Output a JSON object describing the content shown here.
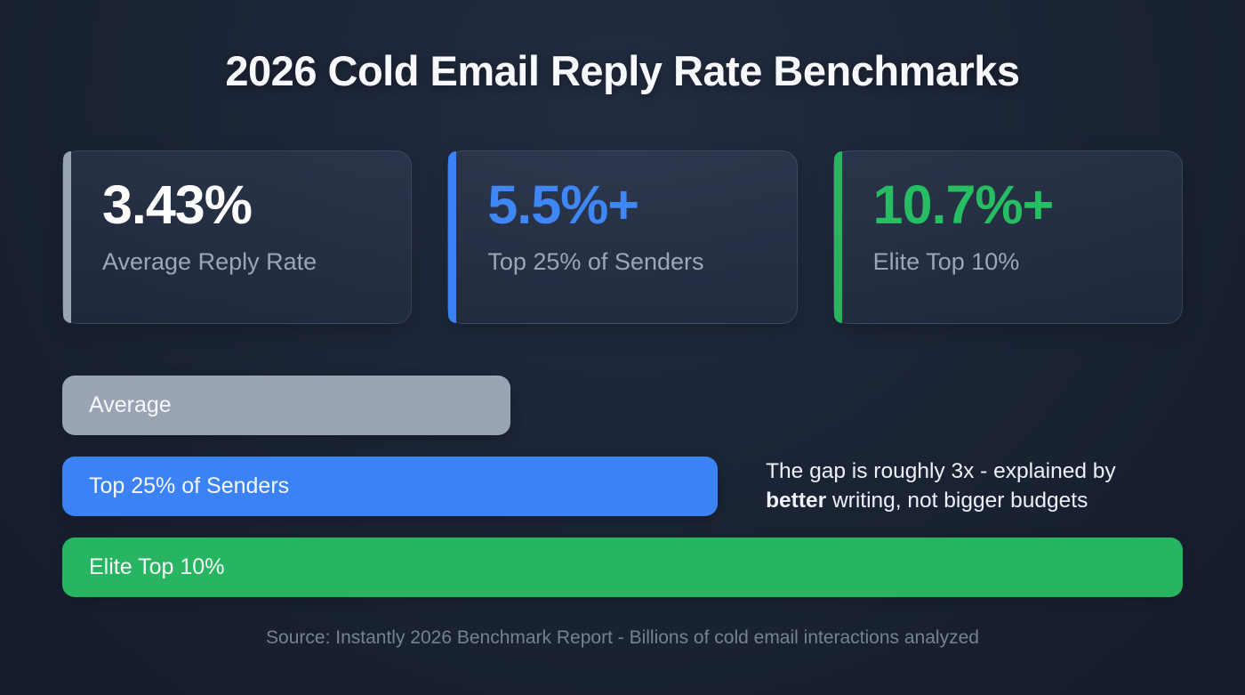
{
  "header": {
    "title": "2026 Cold Email Reply Rate Benchmarks"
  },
  "stat_cards": [
    {
      "value": "3.43%",
      "label": "Average Reply Rate",
      "accent_color": "#9aa4b4",
      "value_color": "#ffffff"
    },
    {
      "value": "5.5%+",
      "label": "Top 25% of Senders",
      "accent_color": "#3b82f6",
      "value_color": "#3f86f7"
    },
    {
      "value": "10.7%+",
      "label": "Elite Top 10%",
      "accent_color": "#28b561",
      "value_color": "#27bd62"
    }
  ],
  "chart_data": {
    "type": "bar",
    "orientation": "horizontal",
    "title": "2026 Cold Email Reply Rate Benchmarks",
    "categories": [
      "Average",
      "Top 25% of Senders",
      "Elite Top 10%"
    ],
    "values": [
      3.43,
      5.5,
      10.7
    ],
    "unit": "% reply rate",
    "bar_colors": [
      "#9aa4b4",
      "#3b82f6",
      "#28b561"
    ],
    "bar_width_pct": [
      40,
      58.5,
      100
    ],
    "grid": false,
    "legend": false,
    "annotations": [
      "The gap is roughly 3x - explained by better writing, not bigger budgets"
    ]
  },
  "annotation": {
    "line1": "The gap is roughly 3x - explained by",
    "line2_bold": "better",
    "line2_rest": " writing, not bigger budgets"
  },
  "footer": {
    "source": "Source: Instantly 2026 Benchmark Report - Billions of cold email interactions analyzed"
  }
}
